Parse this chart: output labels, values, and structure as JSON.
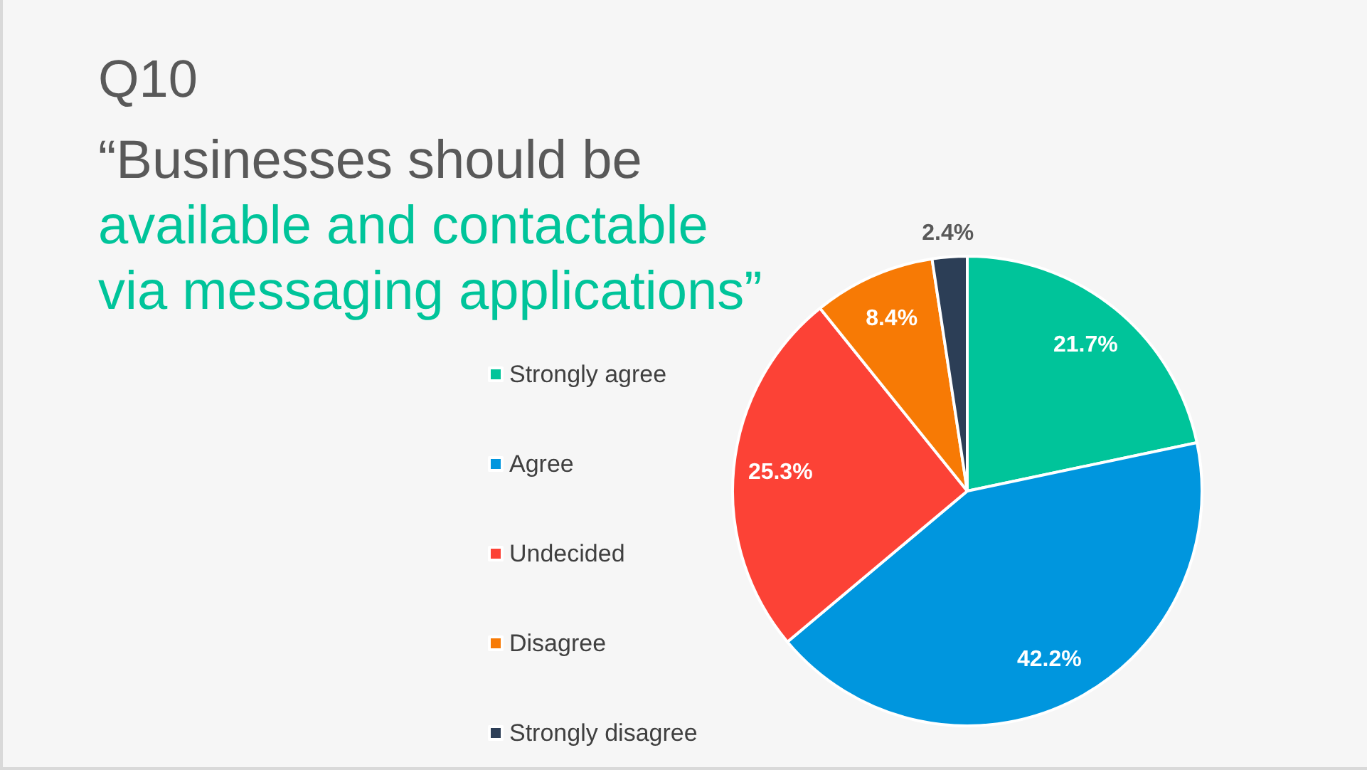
{
  "chart_data": {
    "type": "pie",
    "title": "Q10",
    "subtitle": "“Businesses should be\navailable and contactable\nvia messaging applications”",
    "categories": [
      "Strongly agree",
      "Agree",
      "Undecided",
      "Disagree",
      "Strongly disagree"
    ],
    "values": [
      21.7,
      42.2,
      25.3,
      8.4,
      2.4
    ],
    "value_labels": [
      "21.7%",
      "42.2%",
      "25.3%",
      "8.4%",
      "2.4%"
    ],
    "colors": [
      "#00c49a",
      "#0096de",
      "#fc4236",
      "#f77a05",
      "#2c3e56"
    ],
    "legend": "left"
  }
}
